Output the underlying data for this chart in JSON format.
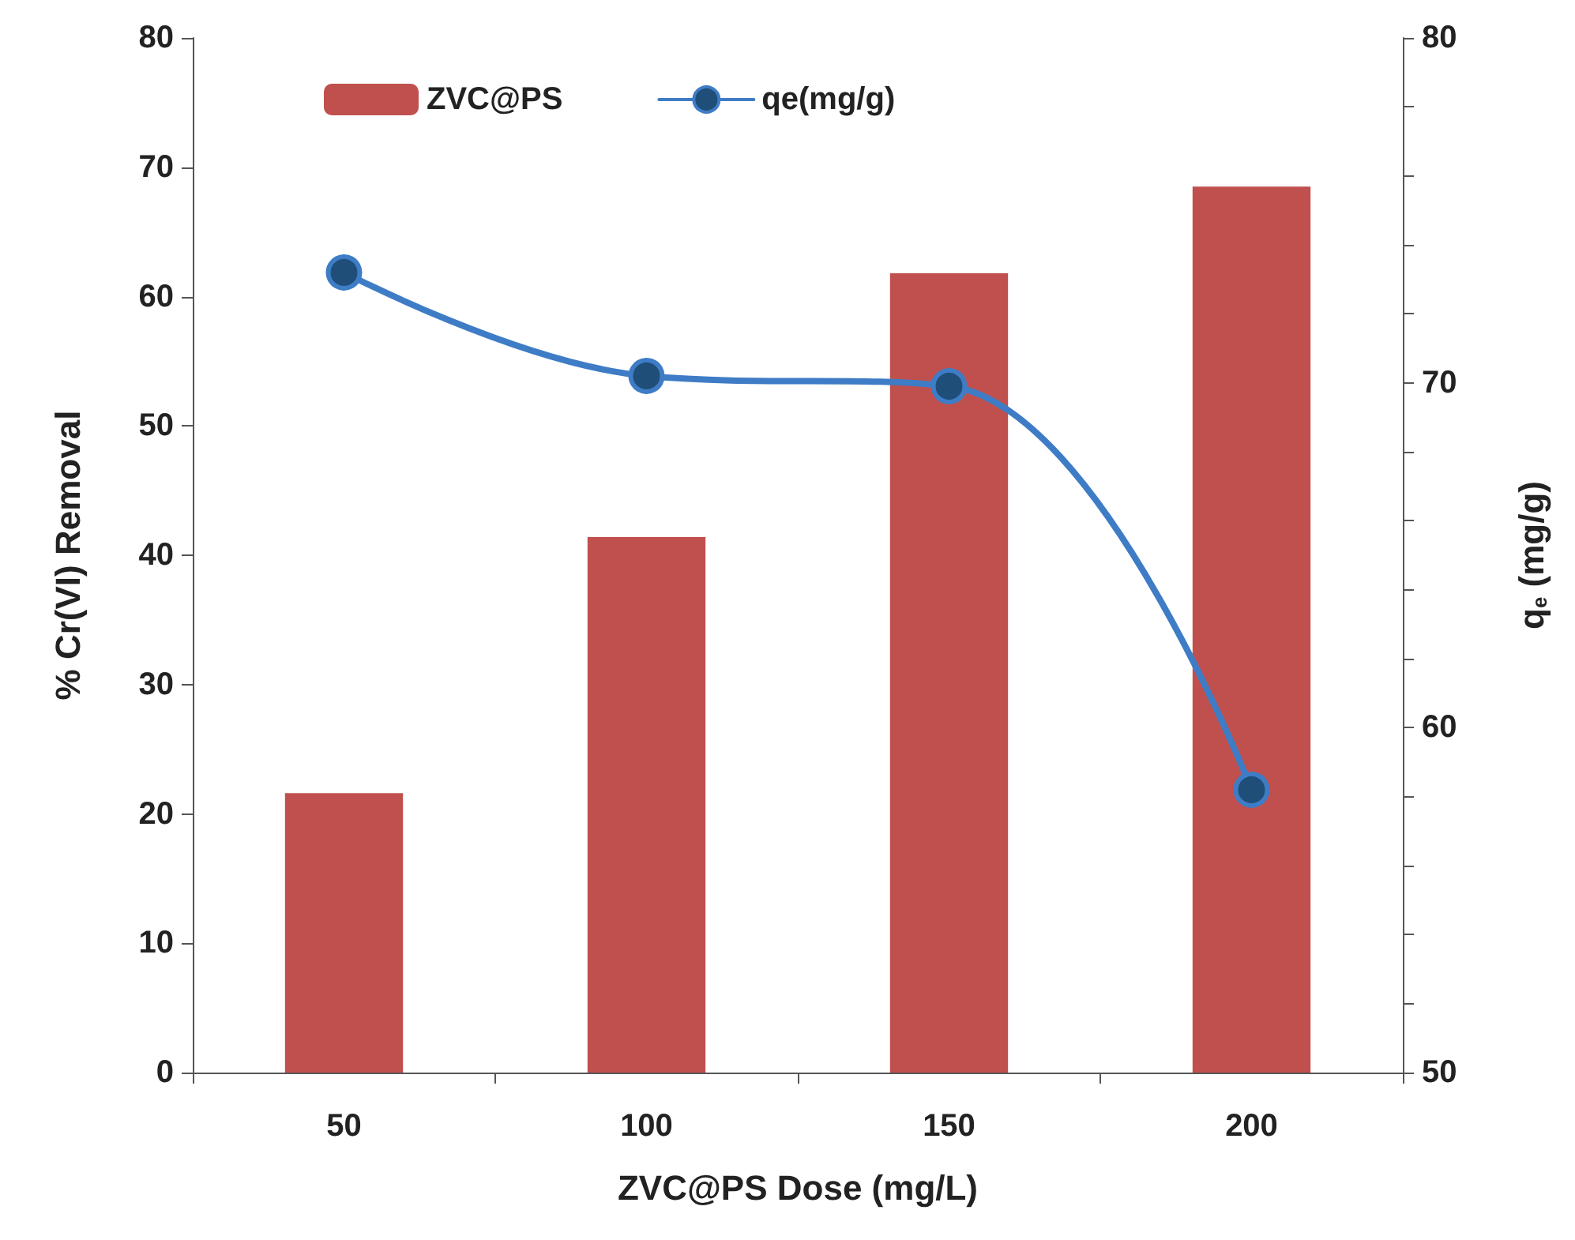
{
  "chart_data": {
    "type": "bar",
    "xlabel": "ZVC@PS Dose (mg/L)",
    "ylabel": "% Cr(VI) Removal",
    "y2label": "q$_{e}$ (mg/g)",
    "categories": [
      "50",
      "100",
      "150",
      "200"
    ],
    "series": [
      {
        "name": "ZVC@PS",
        "color": "#c0504d",
        "values": [
          21.6,
          41.4,
          61.8,
          68.5
        ]
      },
      {
        "name": "qe(mg/g)",
        "type": "line",
        "axis": "y2",
        "color": "#3f7cc6",
        "marker": "circle",
        "values": [
          73.2,
          70.2,
          69.9,
          58.2
        ]
      }
    ],
    "ylim": [
      0,
      80
    ],
    "yticks": [
      0,
      10,
      20,
      30,
      40,
      50,
      60,
      70,
      80
    ],
    "y2lim": [
      50,
      80
    ],
    "y2ticks": [
      50,
      {
        "value": 52,
        "label": null
      },
      {
        "value": 54,
        "label": null
      },
      {
        "value": 56,
        "label": null
      },
      {
        "value": 58,
        "label": null
      },
      60,
      {
        "value": 62,
        "label": null
      },
      {
        "value": 64,
        "label": null
      },
      {
        "value": 66,
        "label": null
      },
      {
        "value": 68,
        "label": null
      },
      70,
      {
        "value": 72,
        "label": null
      },
      {
        "value": 74,
        "label": null
      },
      {
        "value": 76,
        "label": null
      },
      {
        "value": 78,
        "label": null
      },
      80
    ],
    "legend": "top left",
    "grid": false
  }
}
